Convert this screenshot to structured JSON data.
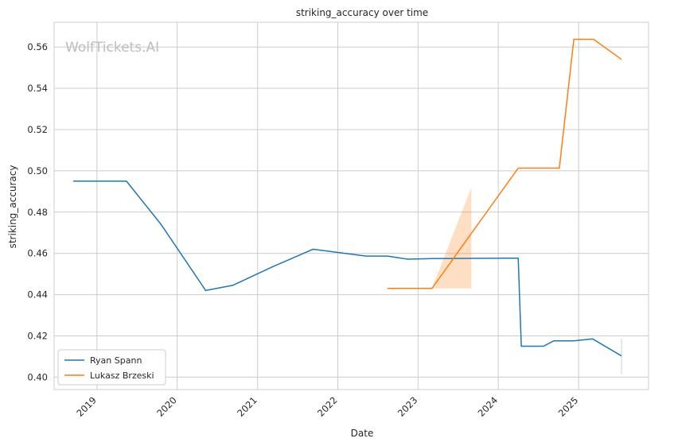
{
  "chart_data": {
    "type": "line",
    "title": "striking_accuracy over time",
    "xlabel": "Date",
    "ylabel": "striking_accuracy",
    "watermark": "WolfTickets.AI",
    "x_ticks": [
      "2019",
      "2020",
      "2021",
      "2022",
      "2023",
      "2024",
      "2025"
    ],
    "y_ticks": [
      "0.40",
      "0.42",
      "0.44",
      "0.46",
      "0.48",
      "0.50",
      "0.52",
      "0.54",
      "0.56"
    ],
    "xlim": [
      "2018-06-20",
      "2025-11-15"
    ],
    "ylim": [
      0.394,
      0.572
    ],
    "grid": true,
    "legend_position": "lower-left",
    "series": [
      {
        "name": "Ryan Spann",
        "color": "#1f77b4",
        "points": [
          {
            "x": "2018-09-15",
            "y": 0.495
          },
          {
            "x": "2019-05-15",
            "y": 0.495
          },
          {
            "x": "2019-10-20",
            "y": 0.474
          },
          {
            "x": "2020-05-10",
            "y": 0.442
          },
          {
            "x": "2020-09-10",
            "y": 0.4445
          },
          {
            "x": "2021-03-10",
            "y": 0.4535
          },
          {
            "x": "2021-09-10",
            "y": 0.462
          },
          {
            "x": "2022-05-10",
            "y": 0.4587
          },
          {
            "x": "2022-08-15",
            "y": 0.4587
          },
          {
            "x": "2022-11-15",
            "y": 0.4572
          },
          {
            "x": "2023-03-10",
            "y": 0.4575
          },
          {
            "x": "2024-04-01",
            "y": 0.4577
          },
          {
            "x": "2024-04-15",
            "y": 0.415
          },
          {
            "x": "2024-07-25",
            "y": 0.415
          },
          {
            "x": "2024-09-10",
            "y": 0.4176
          },
          {
            "x": "2024-12-10",
            "y": 0.4176
          },
          {
            "x": "2025-03-05",
            "y": 0.4186
          },
          {
            "x": "2025-07-15",
            "y": 0.4103
          }
        ],
        "band": {
          "x": "2025-07-15",
          "lower": 0.4015,
          "upper": 0.4185
        }
      },
      {
        "name": "Lukasz Brzeski",
        "color": "#ff7f0e",
        "points": [
          {
            "x": "2022-08-15",
            "y": 0.443
          },
          {
            "x": "2023-03-05",
            "y": 0.443
          },
          {
            "x": "2024-04-01",
            "y": 0.5013
          },
          {
            "x": "2024-10-05",
            "y": 0.5013
          },
          {
            "x": "2024-12-10",
            "y": 0.5637
          },
          {
            "x": "2025-03-10",
            "y": 0.5637
          },
          {
            "x": "2025-07-15",
            "y": 0.554
          }
        ],
        "band": [
          {
            "x": "2023-03-05",
            "lower": 0.443,
            "upper": 0.443
          },
          {
            "x": "2023-09-01",
            "lower": 0.443,
            "upper": 0.492
          }
        ]
      }
    ]
  }
}
